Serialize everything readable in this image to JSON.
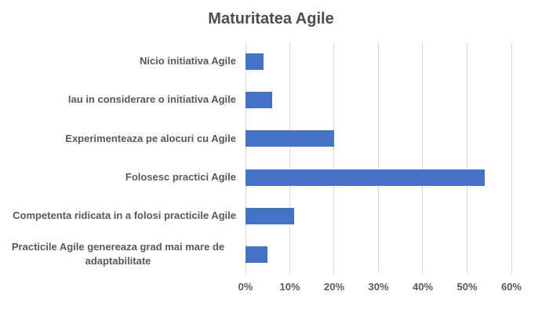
{
  "chart_data": {
    "type": "bar",
    "orientation": "horizontal",
    "title": "Maturitatea Agile",
    "categories": [
      "Nicio initiativa Agile",
      "Iau in considerare o initiativa Agile",
      "Experimenteaza pe alocuri cu Agile",
      "Folosesc practici Agile",
      "Competenta ridicata in a folosi practicile Agile",
      "Practicile Agile genereaza grad mai mare de adaptabilitate"
    ],
    "values": [
      4,
      6,
      20,
      54,
      11,
      5
    ],
    "unit": "%",
    "xlabel": "",
    "ylabel": "",
    "xlim": [
      0,
      60
    ],
    "x_tick_values": [
      0,
      10,
      20,
      30,
      40,
      50,
      60
    ],
    "x_tick_labels": [
      "0%",
      "10%",
      "20%",
      "30%",
      "40%",
      "50%",
      "60%"
    ],
    "grid": true,
    "legend": false,
    "colors": {
      "bar": "#4472C4",
      "gridline": "#D9D9D9",
      "text": "#595959",
      "title": "#4d4d4d",
      "background": "#FFFFFF"
    }
  }
}
